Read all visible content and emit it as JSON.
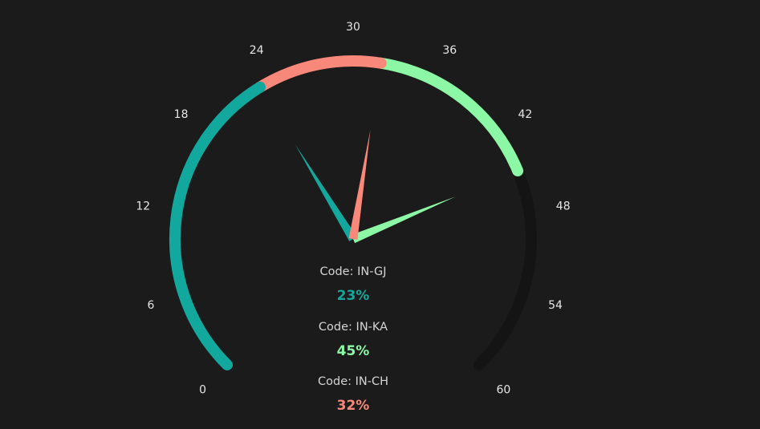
{
  "colors": {
    "background": "#1b1b1b",
    "track": "#141414"
  },
  "chart_data": {
    "type": "gauge",
    "axis": {
      "min": 0,
      "max": 60,
      "ticks": [
        0,
        6,
        12,
        18,
        24,
        30,
        36,
        42,
        48,
        54,
        60
      ]
    },
    "series": [
      {
        "code_label": "Code: IN-GJ",
        "percent_label": "23%",
        "value": 23,
        "color": "#13a89e"
      },
      {
        "code_label": "Code: IN-KA",
        "percent_label": "45%",
        "value": 45,
        "color": "#8cf7a4"
      },
      {
        "code_label": "Code: IN-CH",
        "percent_label": "32%",
        "value": 32,
        "color": "#f7887a"
      }
    ],
    "bands": [
      {
        "from": 0,
        "to": 23,
        "color": "#13a89e"
      },
      {
        "from": 23,
        "to": 32,
        "color": "#f7887a"
      },
      {
        "from": 32,
        "to": 45,
        "color": "#8cf7a4"
      }
    ],
    "pointers": [
      {
        "value": 23,
        "color": "#13a89e"
      },
      {
        "value": 45,
        "color": "#8cf7a4"
      },
      {
        "value": 32,
        "color": "#f7887a"
      }
    ]
  }
}
